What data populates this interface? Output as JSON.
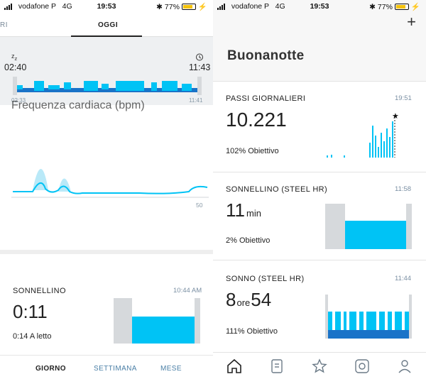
{
  "left": {
    "status": {
      "carrier": "vodafone P",
      "network": "4G",
      "time": "19:53",
      "battery": "77%"
    },
    "top_tabs": {
      "prev_partial": "RI",
      "active": "OGGI"
    },
    "sleep_band": {
      "start_time": "02:40",
      "end_time": "11:43",
      "axis_start": "02:33",
      "axis_end": "11:41",
      "start_icon": "sleep-zz-icon",
      "end_icon": "alarm-clock-icon"
    },
    "heart": {
      "title": "Frequenza cardiaca (bpm)",
      "axis_value": "50"
    },
    "nap": {
      "label": "SONNELLINO",
      "time": "10:44 AM",
      "value": "0:11",
      "sub": "0:14 A letto"
    },
    "bottom_tabs": {
      "day": "GIORNO",
      "week": "SETTIMANA",
      "month": "MESE"
    }
  },
  "right": {
    "status": {
      "carrier": "vodafone P",
      "network": "4G",
      "time": "19:53",
      "battery": "77%"
    },
    "title": "Buonanotte",
    "add_icon": "plus-icon",
    "steps": {
      "label": "PASSI GIORNALIERI",
      "time": "19:51",
      "value": "10.221",
      "goal": "102% Obiettivo"
    },
    "nap": {
      "label": "SONNELLINO (STEEL HR)",
      "time": "11:58",
      "value": "11",
      "unit": "min",
      "goal": "2% Obiettivo"
    },
    "sleep": {
      "label": "SONNO (STEEL HR)",
      "time": "11:44",
      "hours": "8",
      "hours_unit": "ore",
      "minutes": "54",
      "goal": "111% Obiettivo"
    },
    "nav_icons": [
      "home-icon",
      "journal-icon",
      "star-icon",
      "watch-icon",
      "profile-icon"
    ]
  },
  "colors": {
    "accent": "#00c3f5",
    "deep": "#1a73c8",
    "gray": "#d6d9dc"
  }
}
